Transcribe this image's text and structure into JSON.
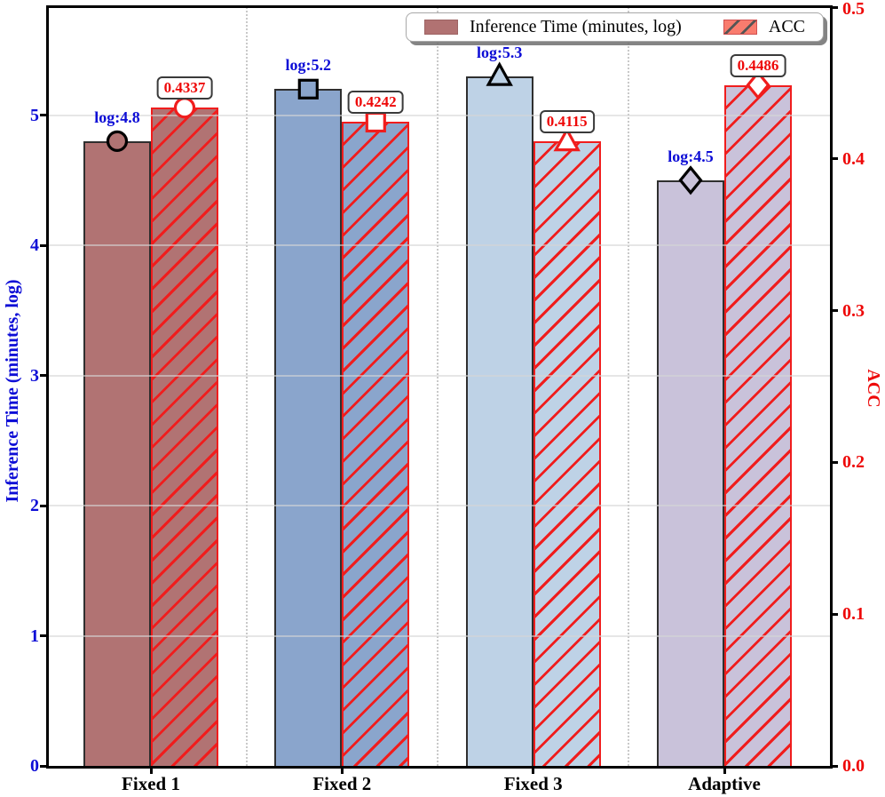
{
  "chart_data": {
    "type": "bar",
    "title": "",
    "categories": [
      "Fixed 1",
      "Fixed 2",
      "Fixed 3",
      "Adaptive"
    ],
    "series": [
      {
        "name": "Inference Time (minutes, log)",
        "axis": "left",
        "values": [
          4.8,
          5.2,
          5.3,
          4.5
        ],
        "bar_labels": [
          "log:4.8",
          "log:5.2",
          "log:5.3",
          "log:4.5"
        ],
        "bar_colors": [
          "#b17373",
          "#8aa5cc",
          "#bed2e6",
          "#c9c2da"
        ],
        "bar_edge_color": "#2f2f2f",
        "markers": [
          "circle-marker",
          "square-marker",
          "triangle-marker",
          "diamond-marker"
        ],
        "marker_edge_color": "#000000",
        "label_color": "#0d0dd6"
      },
      {
        "name": "ACC",
        "axis": "right",
        "values": [
          0.4337,
          0.4242,
          0.4115,
          0.4486
        ],
        "bar_labels": [
          "0.4337",
          "0.4242",
          "0.4115",
          "0.4486"
        ],
        "bar_colors": [
          "#b17373",
          "#8aa5cc",
          "#bed2e6",
          "#c9c2da"
        ],
        "hatch": "/",
        "hatch_color": "#f01d1d",
        "bar_edge_color": "#f01d1d",
        "markers": [
          "circle-marker",
          "square-marker",
          "triangle-marker",
          "diamond-marker"
        ],
        "marker_edge_color": "#f01d1d",
        "marker_fill": "#ffffff",
        "label_color": "#ee0808"
      }
    ],
    "left_axis": {
      "label": "Inference Time (minutes, log)",
      "tick_labels": [
        "0",
        "1",
        "2",
        "3",
        "4",
        "5"
      ],
      "tick_values": [
        0,
        1,
        2,
        3,
        4,
        5
      ],
      "lim": [
        0,
        5.83
      ],
      "color": "#0d0dd6"
    },
    "right_axis": {
      "label": "ACC",
      "tick_labels": [
        "0.0",
        "0.1",
        "0.2",
        "0.3",
        "0.4",
        "0.5"
      ],
      "tick_values": [
        0,
        0.1,
        0.2,
        0.3,
        0.4,
        0.5
      ],
      "lim": [
        0,
        0.5
      ],
      "color": "#ee0808"
    },
    "x_axis": {
      "tick_labels": [
        "Fixed 1",
        "Fixed 2",
        "Fixed 3",
        "Adaptive"
      ],
      "color": "#000000"
    },
    "legend": {
      "position": "upper right",
      "entries": [
        {
          "label": "Inference Time (minutes, log)",
          "swatch": "solid",
          "swatch_color": "#b17272"
        },
        {
          "label": "ACC",
          "swatch": "hatched",
          "swatch_color": "#f97c6e",
          "swatch_hatch_color": "#555555"
        }
      ]
    },
    "grid": {
      "horizontal": "light solid at left-axis integers",
      "vertical": "dotted separators between categories"
    }
  }
}
